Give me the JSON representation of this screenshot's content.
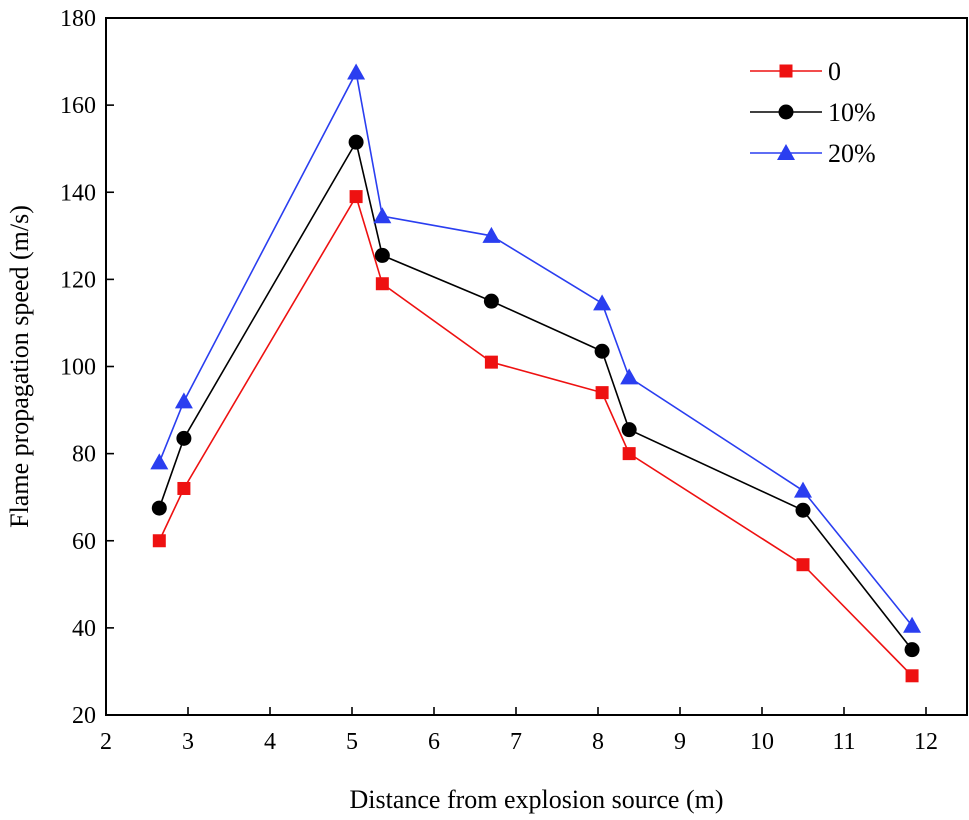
{
  "chart_data": {
    "type": "line",
    "title": "",
    "xlabel": "Distance from explosion source (m)",
    "ylabel": "Flame propagation speed (m/s)",
    "xlim": [
      2,
      12.5
    ],
    "ylim": [
      20,
      180
    ],
    "xticks": [
      2,
      3,
      4,
      5,
      6,
      7,
      8,
      9,
      10,
      11,
      12
    ],
    "yticks": [
      20,
      40,
      60,
      80,
      100,
      120,
      140,
      160,
      180
    ],
    "legend_position": "top-right",
    "series": [
      {
        "name": "0",
        "color": "#ee1111",
        "marker": "square",
        "x": [
          2.65,
          2.95,
          5.05,
          5.37,
          6.7,
          8.05,
          8.38,
          10.5,
          11.83
        ],
        "y": [
          60,
          72,
          139,
          119,
          101,
          94,
          80,
          54.5,
          29
        ]
      },
      {
        "name": "10%",
        "color": "#000000",
        "marker": "circle",
        "x": [
          2.65,
          2.95,
          5.05,
          5.37,
          6.7,
          8.05,
          8.38,
          10.5,
          11.83
        ],
        "y": [
          67.5,
          83.5,
          151.5,
          125.5,
          115,
          103.5,
          85.5,
          67,
          35
        ]
      },
      {
        "name": "20%",
        "color": "#2a3ef0",
        "marker": "triangle",
        "x": [
          2.65,
          2.95,
          5.05,
          5.37,
          6.7,
          8.05,
          8.38,
          10.5,
          11.83
        ],
        "y": [
          78,
          92,
          167.5,
          134.5,
          130,
          114.5,
          97.5,
          71.5,
          40.5
        ]
      }
    ]
  }
}
